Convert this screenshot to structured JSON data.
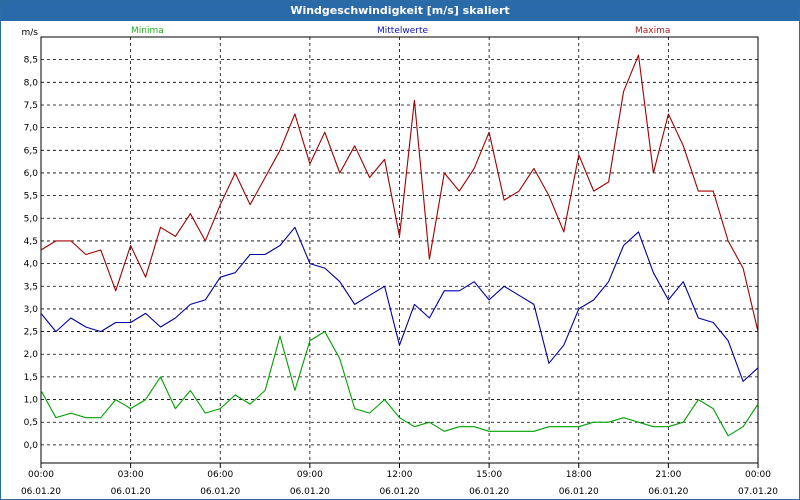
{
  "window": {
    "title": "Windgeschwindigkeit [m/s] skaliert"
  },
  "chart_data": {
    "type": "line",
    "title": "Windgeschwindigkeit [m/s] skaliert",
    "ylabel": "m/s",
    "ylim": [
      -0.4,
      9.0
    ],
    "y_ticks": [
      "0,0",
      "0,5",
      "1,0",
      "1,5",
      "2,0",
      "2,5",
      "3,0",
      "3,5",
      "4,0",
      "4,5",
      "5,0",
      "5,5",
      "6,0",
      "6,5",
      "7,0",
      "7,5",
      "8,0",
      "8,5"
    ],
    "x_ticks": [
      {
        "time": "00:00",
        "date": "06.01.20"
      },
      {
        "time": "03:00",
        "date": "06.01.20"
      },
      {
        "time": "06:00",
        "date": "06.01.20"
      },
      {
        "time": "09:00",
        "date": "06.01.20"
      },
      {
        "time": "12:00",
        "date": "06.01.20"
      },
      {
        "time": "15:00",
        "date": "06.01.20"
      },
      {
        "time": "18:00",
        "date": "06.01.20"
      },
      {
        "time": "21:00",
        "date": "06.01.20"
      },
      {
        "time": "00:00",
        "date": "07.01.20"
      }
    ],
    "grid": true,
    "legend_position": "top",
    "x_hours": [
      0,
      0.5,
      1,
      1.5,
      2,
      2.5,
      3,
      3.5,
      4,
      4.5,
      5,
      5.5,
      6,
      6.5,
      7,
      7.5,
      8,
      8.5,
      9,
      9.5,
      10,
      10.5,
      11,
      11.5,
      12,
      12.5,
      13,
      13.5,
      14,
      14.5,
      15,
      15.5,
      16,
      16.5,
      17,
      17.5,
      18,
      18.5,
      19,
      19.5,
      20,
      20.5,
      21,
      21.5,
      22,
      22.5,
      23,
      23.5,
      24
    ],
    "series": [
      {
        "name": "Maxima",
        "color": "#a00000",
        "values": [
          4.3,
          4.5,
          4.5,
          4.2,
          4.3,
          3.4,
          4.4,
          3.7,
          4.8,
          4.6,
          5.1,
          4.5,
          5.3,
          6.0,
          5.3,
          5.9,
          6.5,
          7.3,
          6.2,
          6.9,
          6.0,
          6.6,
          5.9,
          6.3,
          4.6,
          7.6,
          4.1,
          6.0,
          5.6,
          6.1,
          6.9,
          5.4,
          5.6,
          6.1,
          5.5,
          4.7,
          6.4,
          5.6,
          5.8,
          7.8,
          8.6,
          6.0,
          7.3,
          6.6,
          5.6,
          5.6,
          4.5,
          3.9,
          2.5
        ]
      },
      {
        "name": "Mittelwerte",
        "color": "#0000a0",
        "values": [
          2.9,
          2.5,
          2.8,
          2.6,
          2.5,
          2.7,
          2.7,
          2.9,
          2.6,
          2.8,
          3.1,
          3.2,
          3.7,
          3.8,
          4.2,
          4.2,
          4.4,
          4.8,
          4.0,
          3.9,
          3.6,
          3.1,
          3.3,
          3.5,
          2.2,
          3.1,
          2.8,
          3.4,
          3.4,
          3.6,
          3.2,
          3.5,
          3.3,
          3.1,
          1.8,
          2.2,
          3.0,
          3.2,
          3.6,
          4.4,
          4.7,
          3.8,
          3.2,
          3.6,
          2.8,
          2.7,
          2.3,
          1.4,
          1.7
        ]
      },
      {
        "name": "Minima",
        "color": "#00a000",
        "values": [
          1.2,
          0.6,
          0.7,
          0.6,
          0.6,
          1.0,
          0.8,
          1.0,
          1.5,
          0.8,
          1.2,
          0.7,
          0.8,
          1.1,
          0.9,
          1.2,
          2.4,
          1.2,
          2.3,
          2.5,
          1.9,
          0.8,
          0.7,
          1.0,
          0.6,
          0.4,
          0.5,
          0.3,
          0.4,
          0.4,
          0.3,
          0.3,
          0.3,
          0.3,
          0.4,
          0.4,
          0.4,
          0.5,
          0.5,
          0.6,
          0.5,
          0.4,
          0.4,
          0.5,
          1.0,
          0.8,
          0.2,
          0.4,
          0.9
        ]
      }
    ]
  }
}
